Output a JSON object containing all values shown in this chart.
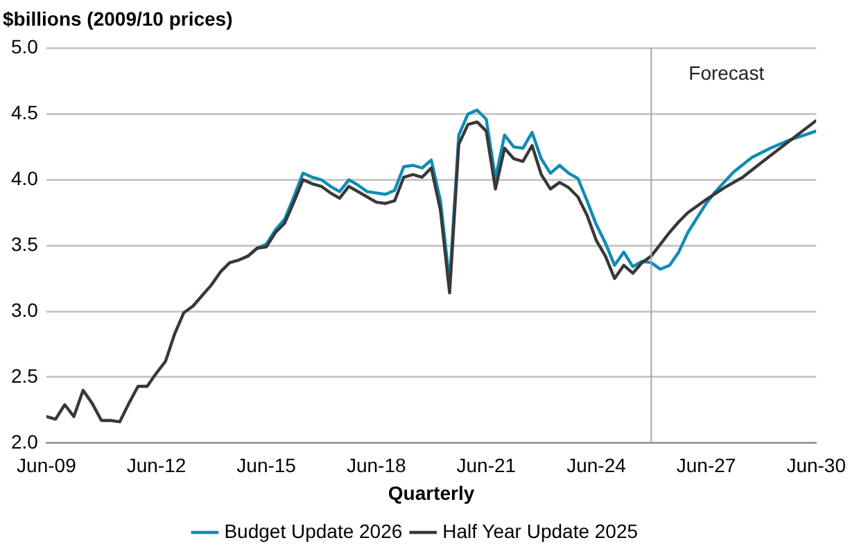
{
  "chart_data": {
    "type": "line",
    "title": "$billions (2009/10 prices)",
    "xlabel": "Quarterly",
    "xlim": [
      "2009-06",
      "2030-06"
    ],
    "xticks": [
      {
        "value": "2009-06",
        "label": "Jun-09"
      },
      {
        "value": "2012-06",
        "label": "Jun-12"
      },
      {
        "value": "2015-06",
        "label": "Jun-15"
      },
      {
        "value": "2018-06",
        "label": "Jun-18"
      },
      {
        "value": "2021-06",
        "label": "Jun-21"
      },
      {
        "value": "2024-06",
        "label": "Jun-24"
      },
      {
        "value": "2027-06",
        "label": "Jun-27"
      },
      {
        "value": "2030-06",
        "label": "Jun-30"
      }
    ],
    "ylim": [
      2.0,
      5.0
    ],
    "yticks": [
      {
        "value": 2,
        "label": "2.0"
      },
      {
        "value": 2.5,
        "label": "2.5"
      },
      {
        "value": 3,
        "label": "3.0"
      },
      {
        "value": 3.5,
        "label": "3.5"
      },
      {
        "value": 4,
        "label": "4.0"
      },
      {
        "value": 4.5,
        "label": "4.5"
      },
      {
        "value": 5,
        "label": "5.0"
      }
    ],
    "grid": "y",
    "legend": "bottom",
    "marker": "none",
    "line_style": "solid",
    "ref_lines": [
      {
        "axis": "x",
        "value": "2025-12",
        "label": "Forecast",
        "color": "#a6a6a6"
      }
    ],
    "series": [
      {
        "name": "Budget Update 2026",
        "color": "#0e8cb4",
        "x": [
          "2014-12",
          "2015-03",
          "2015-06",
          "2015-09",
          "2015-12",
          "2016-03",
          "2016-06",
          "2016-09",
          "2016-12",
          "2017-03",
          "2017-06",
          "2017-09",
          "2017-12",
          "2018-03",
          "2018-06",
          "2018-09",
          "2018-12",
          "2019-03",
          "2019-06",
          "2019-09",
          "2019-12",
          "2020-03",
          "2020-06",
          "2020-09",
          "2020-12",
          "2021-03",
          "2021-06",
          "2021-09",
          "2021-12",
          "2022-03",
          "2022-06",
          "2022-09",
          "2022-12",
          "2023-03",
          "2023-06",
          "2023-09",
          "2023-12",
          "2024-03",
          "2024-06",
          "2024-09",
          "2024-12",
          "2025-03",
          "2025-06",
          "2025-09",
          "2025-12",
          "2026-03",
          "2026-06",
          "2026-09",
          "2026-12",
          "2027-06",
          "2027-09",
          "2028-03",
          "2028-09",
          "2029-03",
          "2029-09",
          "2030-06"
        ],
        "values": [
          3.42,
          3.48,
          3.51,
          3.62,
          3.7,
          3.87,
          4.05,
          4.02,
          4.0,
          3.95,
          3.91,
          4.0,
          3.96,
          3.91,
          3.9,
          3.89,
          3.92,
          4.1,
          4.11,
          4.09,
          4.15,
          3.84,
          3.22,
          4.34,
          4.5,
          4.53,
          4.46,
          4.01,
          4.34,
          4.25,
          4.24,
          4.36,
          4.16,
          4.05,
          4.11,
          4.05,
          4.01,
          3.84,
          3.66,
          3.52,
          3.35,
          3.45,
          3.34,
          3.38,
          3.37,
          3.32,
          3.35,
          3.45,
          3.6,
          3.82,
          3.91,
          4.06,
          4.17,
          4.24,
          4.3,
          4.37
        ]
      },
      {
        "name": "Half Year Update 2025",
        "color": "#383838",
        "x": [
          "2009-06",
          "2009-09",
          "2009-12",
          "2010-03",
          "2010-06",
          "2010-09",
          "2010-12",
          "2011-03",
          "2011-06",
          "2011-09",
          "2011-12",
          "2012-03",
          "2012-06",
          "2012-09",
          "2012-12",
          "2013-03",
          "2013-06",
          "2013-09",
          "2013-12",
          "2014-03",
          "2014-06",
          "2014-09",
          "2014-12",
          "2015-03",
          "2015-06",
          "2015-09",
          "2015-12",
          "2016-03",
          "2016-06",
          "2016-09",
          "2016-12",
          "2017-03",
          "2017-06",
          "2017-09",
          "2017-12",
          "2018-03",
          "2018-06",
          "2018-09",
          "2018-12",
          "2019-03",
          "2019-06",
          "2019-09",
          "2019-12",
          "2020-03",
          "2020-06",
          "2020-09",
          "2020-12",
          "2021-03",
          "2021-06",
          "2021-09",
          "2021-12",
          "2022-03",
          "2022-06",
          "2022-09",
          "2022-12",
          "2023-03",
          "2023-06",
          "2023-09",
          "2023-12",
          "2024-03",
          "2024-06",
          "2024-09",
          "2024-12",
          "2025-03",
          "2025-06",
          "2025-09",
          "2025-12",
          "2026-03",
          "2026-06",
          "2026-09",
          "2026-12",
          "2027-06",
          "2027-12",
          "2028-06",
          "2028-12",
          "2029-09",
          "2030-06"
        ],
        "values": [
          2.2,
          2.18,
          2.29,
          2.2,
          2.4,
          2.3,
          2.17,
          2.17,
          2.16,
          2.3,
          2.43,
          2.43,
          2.53,
          2.62,
          2.83,
          2.99,
          3.04,
          3.12,
          3.2,
          3.3,
          3.37,
          3.39,
          3.42,
          3.48,
          3.49,
          3.6,
          3.67,
          3.83,
          4.0,
          3.97,
          3.95,
          3.9,
          3.86,
          3.95,
          3.91,
          3.87,
          3.83,
          3.82,
          3.84,
          4.02,
          4.04,
          4.02,
          4.09,
          3.77,
          3.14,
          4.27,
          4.42,
          4.44,
          4.37,
          3.93,
          4.24,
          4.16,
          4.14,
          4.26,
          4.04,
          3.93,
          3.98,
          3.94,
          3.87,
          3.73,
          3.54,
          3.42,
          3.25,
          3.35,
          3.29,
          3.37,
          3.42,
          3.51,
          3.6,
          3.68,
          3.75,
          3.85,
          3.94,
          4.02,
          4.13,
          4.29,
          4.45
        ]
      }
    ]
  }
}
